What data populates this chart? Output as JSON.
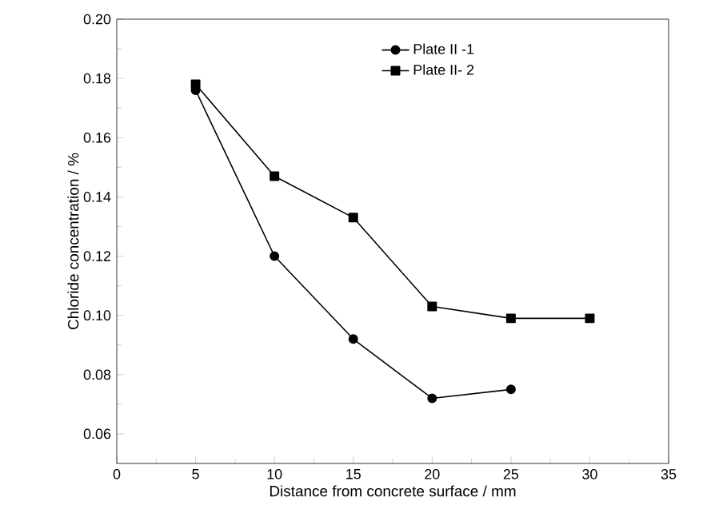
{
  "chart_data": {
    "type": "line",
    "xlabel": "Distance from concrete surface / mm",
    "ylabel": "Chloride concentration / %",
    "xlim": [
      0,
      35
    ],
    "xticks": [
      0,
      5,
      10,
      15,
      20,
      25,
      30,
      35
    ],
    "ylim": [
      0.05,
      0.2
    ],
    "yticks": [
      0.06,
      0.08,
      {
        "value": 0.1,
        "label": "0.10"
      },
      0.12,
      0.14,
      0.16,
      0.18,
      {
        "value": 0.2,
        "label": "0.20"
      }
    ],
    "legend": "top right",
    "line_style": "solid",
    "series": [
      {
        "name": "Plate II -1",
        "color": "#000000",
        "marker": "circle",
        "x": [
          5,
          10,
          15,
          20,
          25
        ],
        "values": [
          0.176,
          0.12,
          0.092,
          0.072,
          0.075
        ]
      },
      {
        "name": "Plate II- 2",
        "color": "#000000",
        "marker": "square",
        "x": [
          5,
          10,
          15,
          20,
          25,
          30
        ],
        "values": [
          0.178,
          0.147,
          0.133,
          0.103,
          0.099,
          0.099
        ]
      }
    ]
  }
}
